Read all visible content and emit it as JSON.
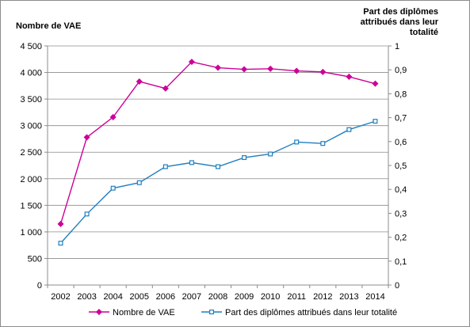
{
  "chart_data": {
    "type": "line",
    "x": [
      "2002",
      "2003",
      "2004",
      "2005",
      "2006",
      "2007",
      "2008",
      "2009",
      "2010",
      "2011",
      "2012",
      "2013",
      "2014"
    ],
    "ylabel_left": "Nombre de VAE",
    "ylabel_right_lines": [
      "Part des diplômes",
      "attribués dans leur",
      "totalité"
    ],
    "ylim_left": [
      0,
      4500
    ],
    "yticks_left": [
      "0",
      "500",
      "1 000",
      "1 500",
      "2 000",
      "2 500",
      "3 000",
      "3 500",
      "4 000",
      "4 500"
    ],
    "ylim_right": [
      0,
      1
    ],
    "yticks_right": [
      "0",
      "0,1",
      "0,2",
      "0,3",
      "0,4",
      "0,5",
      "0,6",
      "0,7",
      "0,8",
      "0,9",
      "1"
    ],
    "grid": true,
    "legend_position": "bottom",
    "series": [
      {
        "name": "Nombre de VAE",
        "axis": "left",
        "color": "#cc0099",
        "marker": "diamond",
        "values": [
          1150,
          2780,
          3160,
          3830,
          3700,
          4200,
          4090,
          4060,
          4070,
          4030,
          4010,
          3920,
          3790
        ]
      },
      {
        "name": "Part des diplômes attribués dans leur totalité",
        "axis": "right",
        "color": "#1f7fbf",
        "marker": "square",
        "values": [
          0.175,
          0.297,
          0.405,
          0.428,
          0.495,
          0.512,
          0.495,
          0.533,
          0.548,
          0.598,
          0.592,
          0.65,
          0.685
        ]
      }
    ]
  }
}
